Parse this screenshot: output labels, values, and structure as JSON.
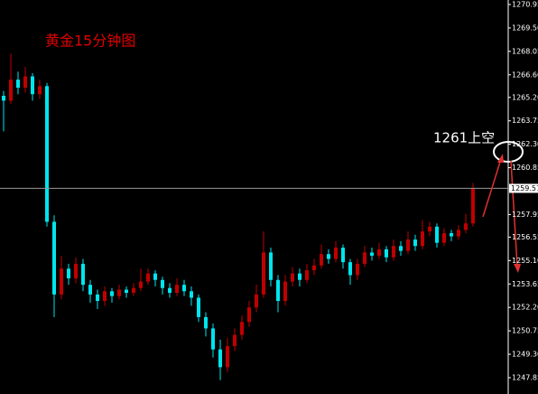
{
  "chart_data": {
    "type": "candlestick",
    "title": "黄金15分钟图",
    "annotation": "1261上空",
    "up_color": "#c00000",
    "down_color": "#00e5ee",
    "ylim": [
      1246.84,
      1271.23
    ],
    "yticks": [
      1270.95,
      {
        "value": 1269.5,
        "label": "1269.50"
      },
      1268.05,
      {
        "value": 1266.6,
        "label": "1266.60"
      },
      {
        "value": 1265.2,
        "label": "1265.20"
      },
      1263.75,
      {
        "value": 1262.3,
        "label": "1262.30"
      },
      1260.85,
      1257.95,
      1256.55,
      {
        "value": 1255.1,
        "label": "1255.10"
      },
      1253.65,
      {
        "value": 1252.2,
        "label": "1252.20"
      },
      1250.75,
      {
        "value": 1249.3,
        "label": "1249.30"
      },
      1247.85
    ],
    "last_price": 1259.57,
    "open": [
      1265.3,
      1265.0,
      1266.3,
      1265.8,
      1266.5,
      1265.4,
      1265.9,
      1257.5,
      1253.0,
      1254.6,
      1254.0,
      1254.9,
      1253.6,
      1253.0,
      1252.6,
      1253.2,
      1252.9,
      1253.3,
      1253.1,
      1253.4,
      1253.8,
      1254.3,
      1253.9,
      1253.4,
      1253.1,
      1253.6,
      1253.2,
      1252.8,
      1251.6,
      1250.9,
      1249.6,
      1248.5,
      1249.8,
      1250.5,
      1251.3,
      1252.2,
      1253.0,
      1255.6,
      1253.9,
      1252.6,
      1253.8,
      1254.3,
      1253.9,
      1254.5,
      1254.8,
      1255.5,
      1255.2,
      1255.9,
      1255.0,
      1254.2,
      1254.9,
      1255.6,
      1255.4,
      1255.8,
      1255.3,
      1256.0,
      1255.7,
      1256.4,
      1256.0,
      1256.9,
      1257.2,
      1256.2,
      1256.8,
      1256.6,
      1257.0,
      1257.4
    ],
    "high": [
      1265.6,
      1267.9,
      1266.8,
      1267.1,
      1266.7,
      1266.3,
      1266.1,
      1257.9,
      1255.4,
      1254.9,
      1255.3,
      1255.2,
      1253.9,
      1253.3,
      1253.5,
      1253.4,
      1253.6,
      1253.5,
      1253.7,
      1254.6,
      1254.6,
      1254.5,
      1254.1,
      1253.7,
      1254.0,
      1253.9,
      1253.5,
      1253.0,
      1251.9,
      1251.2,
      1250.2,
      1250.3,
      1250.9,
      1251.7,
      1252.6,
      1253.6,
      1256.9,
      1255.9,
      1254.2,
      1254.2,
      1254.7,
      1254.6,
      1254.9,
      1255.2,
      1256.1,
      1255.8,
      1256.3,
      1256.1,
      1255.2,
      1255.2,
      1256.0,
      1255.9,
      1256.2,
      1256.0,
      1256.4,
      1256.3,
      1256.9,
      1256.7,
      1257.6,
      1257.5,
      1257.4,
      1257.1,
      1257.0,
      1257.3,
      1258.0,
      1259.9
    ],
    "low": [
      1263.1,
      1264.8,
      1265.4,
      1265.5,
      1265.0,
      1265.1,
      1257.2,
      1251.6,
      1252.7,
      1253.6,
      1253.7,
      1253.2,
      1252.5,
      1252.1,
      1252.3,
      1252.5,
      1252.7,
      1252.8,
      1252.9,
      1253.2,
      1253.6,
      1253.5,
      1253.0,
      1252.8,
      1252.9,
      1252.9,
      1252.3,
      1251.3,
      1250.4,
      1249.1,
      1247.7,
      1248.2,
      1249.5,
      1250.2,
      1251.0,
      1251.9,
      1252.8,
      1253.5,
      1251.9,
      1252.3,
      1253.5,
      1253.5,
      1253.7,
      1254.2,
      1254.6,
      1254.9,
      1255.0,
      1254.6,
      1253.6,
      1253.9,
      1254.7,
      1255.1,
      1255.2,
      1255.0,
      1255.1,
      1255.4,
      1255.5,
      1255.7,
      1255.8,
      1256.6,
      1255.9,
      1256.0,
      1256.3,
      1256.4,
      1256.8,
      1257.2
    ],
    "close": [
      1265.0,
      1266.3,
      1265.8,
      1266.5,
      1265.4,
      1265.9,
      1257.5,
      1253.0,
      1254.6,
      1254.0,
      1254.9,
      1253.6,
      1253.0,
      1252.6,
      1253.2,
      1252.9,
      1253.3,
      1253.1,
      1253.4,
      1253.8,
      1254.3,
      1253.9,
      1253.4,
      1253.1,
      1253.6,
      1253.2,
      1252.8,
      1251.6,
      1250.9,
      1249.6,
      1248.5,
      1249.8,
      1250.5,
      1251.3,
      1252.2,
      1253.0,
      1255.6,
      1253.9,
      1252.6,
      1253.8,
      1254.3,
      1253.9,
      1254.5,
      1254.8,
      1255.5,
      1255.2,
      1255.9,
      1255.0,
      1254.2,
      1254.9,
      1255.6,
      1255.4,
      1255.8,
      1255.3,
      1256.0,
      1255.7,
      1256.4,
      1256.0,
      1256.9,
      1257.2,
      1256.2,
      1256.8,
      1256.6,
      1257.0,
      1257.4,
      1259.57
    ]
  }
}
